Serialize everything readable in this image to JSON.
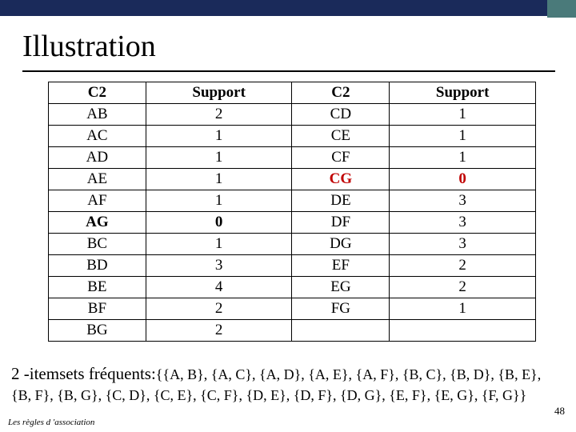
{
  "title": "Illustration",
  "table": {
    "headers": [
      "C2",
      "Support",
      "C2",
      "Support"
    ],
    "rows": [
      {
        "cells": [
          "AB",
          "2",
          "CD",
          "1"
        ],
        "bold": false,
        "red": false
      },
      {
        "cells": [
          "AC",
          "1",
          "CE",
          "1"
        ],
        "bold": false,
        "red": false
      },
      {
        "cells": [
          "AD",
          "1",
          "CF",
          "1"
        ],
        "bold": false,
        "red": false
      },
      {
        "cells": [
          "AE",
          "1",
          "CG",
          "0"
        ],
        "bold": false,
        "red": true
      },
      {
        "cells": [
          "AF",
          "1",
          "DE",
          "3"
        ],
        "bold": false,
        "red": false
      },
      {
        "cells": [
          "AG",
          "0",
          "DF",
          "3"
        ],
        "bold": true,
        "red": false
      },
      {
        "cells": [
          "BC",
          "1",
          "DG",
          "3"
        ],
        "bold": false,
        "red": false
      },
      {
        "cells": [
          "BD",
          "3",
          "EF",
          "2"
        ],
        "bold": false,
        "red": false
      },
      {
        "cells": [
          "BE",
          "4",
          "EG",
          "2"
        ],
        "bold": false,
        "red": false
      },
      {
        "cells": [
          "BF",
          "2",
          "FG",
          "1"
        ],
        "bold": false,
        "red": false
      },
      {
        "cells": [
          "BG",
          "2",
          "",
          ""
        ],
        "bold": false,
        "red": false
      }
    ]
  },
  "bottom_line1_label": "2 -itemsets fréquents:",
  "bottom_line1_sets": "{{A, B}, {A, C}, {A, D}, {A, E}, {A, F}, {B, C}, {B, D}, {B, E},",
  "bottom_line2_sets": "{B, F}, {B, G}, {C, D}, {C, E}, {C, F}, {D, E}, {D, F}, {D, G}, {E, F}, {E, G}, {F, G}}",
  "footer": "Les règles d 'association",
  "page_number": "48"
}
